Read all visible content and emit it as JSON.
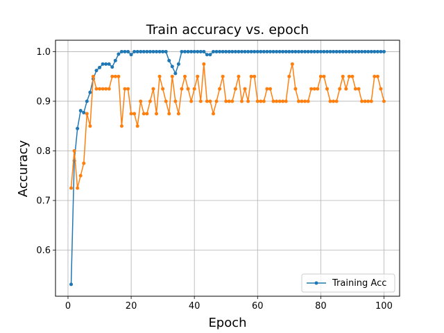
{
  "chart_data": {
    "type": "line",
    "title": "Train accuracy vs. epoch",
    "xlabel": "Epoch",
    "ylabel": "Accuracy",
    "xlim": [
      -3.95,
      104.95
    ],
    "ylim": [
      0.507,
      1.023
    ],
    "xticks": [
      0,
      20,
      40,
      60,
      80,
      100
    ],
    "yticks": [
      0.6,
      0.7,
      0.8,
      0.9,
      1.0
    ],
    "grid": true,
    "legend": {
      "position": "lower-right",
      "entries": [
        "Training Acc"
      ]
    },
    "x": [
      1,
      2,
      3,
      4,
      5,
      6,
      7,
      8,
      9,
      10,
      11,
      12,
      13,
      14,
      15,
      16,
      17,
      18,
      19,
      20,
      21,
      22,
      23,
      24,
      25,
      26,
      27,
      28,
      29,
      30,
      31,
      32,
      33,
      34,
      35,
      36,
      37,
      38,
      39,
      40,
      41,
      42,
      43,
      44,
      45,
      46,
      47,
      48,
      49,
      50,
      51,
      52,
      53,
      54,
      55,
      56,
      57,
      58,
      59,
      60,
      61,
      62,
      63,
      64,
      65,
      66,
      67,
      68,
      69,
      70,
      71,
      72,
      73,
      74,
      75,
      76,
      77,
      78,
      79,
      80,
      81,
      82,
      83,
      84,
      85,
      86,
      87,
      88,
      89,
      90,
      91,
      92,
      93,
      94,
      95,
      96,
      97,
      98,
      99,
      100
    ],
    "series": [
      {
        "name": "Training Acc",
        "color": "#1f77b4",
        "values": [
          0.531,
          0.78,
          0.845,
          0.881,
          0.877,
          0.9,
          0.918,
          0.945,
          0.962,
          0.968,
          0.975,
          0.975,
          0.975,
          0.969,
          0.982,
          0.995,
          1.0,
          1.0,
          1.0,
          0.994,
          1.0,
          1.0,
          1.0,
          1.0,
          1.0,
          1.0,
          1.0,
          1.0,
          1.0,
          1.0,
          1.0,
          0.982,
          0.97,
          0.956,
          0.975,
          1.0,
          1.0,
          1.0,
          1.0,
          1.0,
          1.0,
          1.0,
          1.0,
          0.994,
          0.994,
          1.0,
          1.0,
          1.0,
          1.0,
          1.0,
          1.0,
          1.0,
          1.0,
          1.0,
          1.0,
          1.0,
          1.0,
          1.0,
          1.0,
          1.0,
          1.0,
          1.0,
          1.0,
          1.0,
          1.0,
          1.0,
          1.0,
          1.0,
          1.0,
          1.0,
          1.0,
          1.0,
          1.0,
          1.0,
          1.0,
          1.0,
          1.0,
          1.0,
          1.0,
          1.0,
          1.0,
          1.0,
          1.0,
          1.0,
          1.0,
          1.0,
          1.0,
          1.0,
          1.0,
          1.0,
          1.0,
          1.0,
          1.0,
          1.0,
          1.0,
          1.0,
          1.0,
          1.0,
          1.0,
          1.0
        ]
      },
      {
        "color": "#ff7f0e",
        "values": [
          0.725,
          0.8,
          0.725,
          0.75,
          0.775,
          0.875,
          0.85,
          0.95,
          0.925,
          0.925,
          0.925,
          0.925,
          0.925,
          0.95,
          0.95,
          0.95,
          0.85,
          0.925,
          0.925,
          0.875,
          0.875,
          0.85,
          0.9,
          0.875,
          0.875,
          0.9,
          0.925,
          0.875,
          0.95,
          0.925,
          0.9,
          0.875,
          0.95,
          0.9,
          0.875,
          0.925,
          0.95,
          0.925,
          0.9,
          0.925,
          0.95,
          0.9,
          0.975,
          0.9,
          0.9,
          0.875,
          0.9,
          0.925,
          0.95,
          0.9,
          0.9,
          0.9,
          0.925,
          0.95,
          0.9,
          0.925,
          0.9,
          0.95,
          0.95,
          0.9,
          0.9,
          0.9,
          0.925,
          0.925,
          0.9,
          0.9,
          0.9,
          0.9,
          0.9,
          0.95,
          0.975,
          0.925,
          0.9,
          0.9,
          0.9,
          0.9,
          0.925,
          0.925,
          0.925,
          0.95,
          0.95,
          0.925,
          0.9,
          0.9,
          0.9,
          0.925,
          0.95,
          0.925,
          0.95,
          0.95,
          0.925,
          0.925,
          0.9,
          0.9,
          0.9,
          0.9,
          0.95,
          0.95,
          0.925,
          0.9
        ]
      }
    ]
  }
}
